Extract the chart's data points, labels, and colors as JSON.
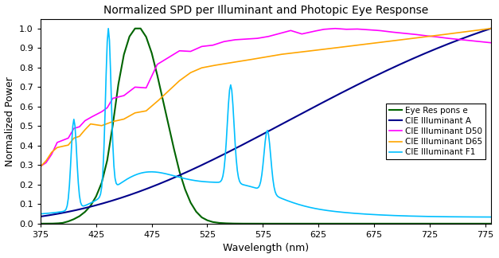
{
  "title": "Normalized SPD per Illuminant and Photopic Eye Response",
  "xlabel": "Wavelength (nm)",
  "ylabel": "Normalized Power",
  "xlim": [
    375,
    780
  ],
  "ylim": [
    0,
    1.05
  ],
  "xticks": [
    375,
    425,
    475,
    525,
    575,
    625,
    675,
    725,
    775
  ],
  "yticks": [
    0,
    0.1,
    0.2,
    0.3,
    0.4,
    0.5,
    0.6,
    0.7,
    0.8,
    0.9,
    1
  ],
  "legend_labels": [
    "Eye Res pons e",
    "CIE Illuminant A",
    "CIE Illuminant D50",
    "CIE Illuminant D65",
    "CIE Illuminant F1"
  ],
  "colors": {
    "eye": "#006400",
    "illum_a": "#00008B",
    "d50": "#FF00FF",
    "d65": "#FFA500",
    "f1": "#00BFFF"
  },
  "background_color": "#FFFFFF",
  "figure_background": "#FFFFFF",
  "linewidth": 1.2
}
